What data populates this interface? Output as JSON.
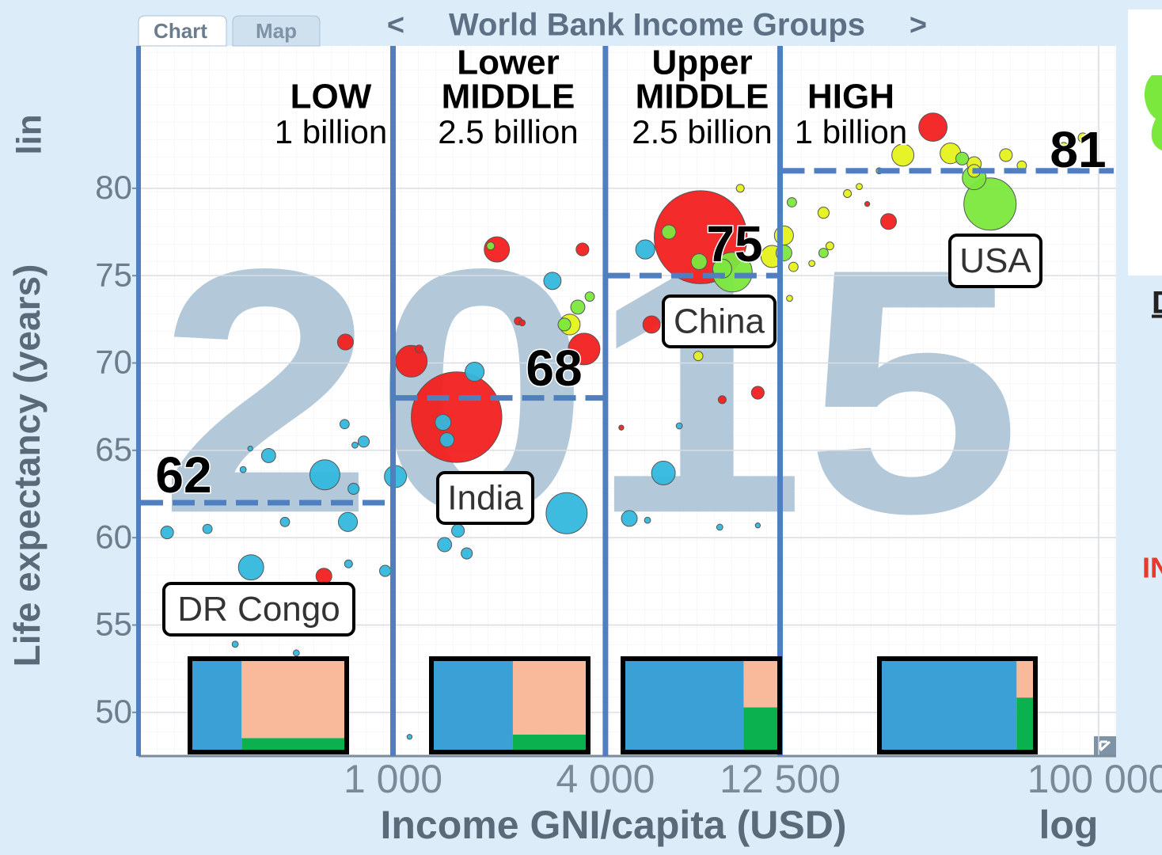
{
  "chart_data": {
    "type": "scatter",
    "year": "2015",
    "tabs": [
      "Chart",
      "Map"
    ],
    "nav_prev": "<",
    "title": "World Bank Income Groups",
    "nav_next": ">",
    "y_label": "Life expectancy (years)",
    "y_scale_label": "lin",
    "x_label": "Income GNI/capita (USD)",
    "x_scale_label": "log",
    "log_x": true,
    "grid": true,
    "xlim": [
      190,
      112000
    ],
    "ylim": [
      47.5,
      88.15
    ],
    "xticks": [
      {
        "value": 1000,
        "label": "1 000"
      },
      {
        "value": 4000,
        "label": "4 000"
      },
      {
        "value": 12500,
        "label": "12 500"
      },
      {
        "value": 100000,
        "label": "100 000"
      }
    ],
    "yticks": [
      50,
      55,
      60,
      65,
      70,
      75,
      80
    ],
    "boundary_color": "#4f7fbf",
    "mix_colors": {
      "blue": "#3aa0d6",
      "pink": "#f9b99b",
      "green": "#0bb04f"
    },
    "groups": [
      {
        "label_lines": [
          "LOW"
        ],
        "population": "1 billion",
        "average": 62,
        "mix": {
          "blue": 33,
          "pink": 57,
          "green": 10
        }
      },
      {
        "label_lines": [
          "Lower",
          "MIDDLE"
        ],
        "population": "2.5 billion",
        "average": 68,
        "mix": {
          "blue": 52,
          "pink": 39,
          "green": 9
        }
      },
      {
        "label_lines": [
          "Upper",
          "MIDDLE"
        ],
        "population": "2.5 billion",
        "average": 75,
        "mix": {
          "blue": 77,
          "pink": 12,
          "green": 11
        }
      },
      {
        "label_lines": [
          "HIGH"
        ],
        "population": "1 billion",
        "average": 81,
        "mix": {
          "blue": 88,
          "pink": 5,
          "green": 7
        }
      }
    ],
    "annotations": [
      {
        "text": "DR Congo"
      },
      {
        "text": "India"
      },
      {
        "text": "China"
      },
      {
        "text": "USA"
      }
    ],
    "side_fragments": [
      "D",
      "IN"
    ],
    "series": [
      {
        "color": "#33b8dd",
        "x": [
          229,
          298,
          396,
          444,
          494,
          641,
          729,
          773,
          745,
          826,
          1016,
          950,
          376,
          394,
          748,
          1703,
          1386,
          1422,
          1528,
          1400,
          1618,
          3105,
          2830,
          4674,
          5263,
          5839,
          5186,
          6475,
          8433,
          10810,
          1114,
          357,
          532,
          780
        ],
        "values": [
          60.3,
          60.5,
          58.3,
          64.7,
          60.9,
          63.6,
          66.5,
          62.8,
          60.9,
          65.5,
          63.5,
          58.1,
          63.9,
          65.1,
          58.5,
          69.5,
          66.6,
          65.6,
          60.4,
          59.6,
          59.1,
          61.4,
          74.7,
          61.1,
          61.0,
          63.7,
          76.5,
          66.4,
          60.6,
          60.7,
          48.6,
          53.9,
          53.4,
          65.3
        ],
        "sizes": [
          26,
          14,
          102,
          32,
          14,
          144,
          14,
          20,
          58,
          20,
          78,
          20,
          6,
          4,
          10,
          58,
          40,
          32,
          26,
          32,
          20,
          270,
          48,
          40,
          6,
          90,
          58,
          6,
          6,
          4,
          4,
          6,
          6,
          6
        ]
      },
      {
        "color": "#f2201f",
        "x": [
          733,
          1969,
          3443,
          1127,
          1514,
          7447,
          2265,
          3480,
          5404,
          10810,
          8570,
          33900,
          25370,
          22080,
          637,
          2323,
          4436,
          1186
        ],
        "values": [
          71.2,
          76.5,
          76.5,
          70.1,
          66.9,
          77.2,
          72.4,
          70.8,
          72.2,
          68.3,
          67.9,
          83.5,
          78.1,
          79.1,
          57.8,
          72.3,
          66.3,
          70.8
        ],
        "sizes": [
          40,
          102,
          26,
          160,
          1310,
          1380,
          10,
          160,
          48,
          26,
          10,
          128,
          40,
          4,
          40,
          6,
          4,
          10
        ]
      },
      {
        "color": "#e5f21a",
        "x": [
          12820,
          13640,
          16600,
          19400,
          20960,
          27860,
          38000,
          44360,
          54580,
          60530,
          90150,
          79620,
          44360,
          9640,
          7330,
          3170,
          17300,
          15380,
          13300,
          11860
        ],
        "values": [
          77.3,
          75.5,
          78.6,
          79.7,
          80.1,
          81.9,
          82.0,
          81.4,
          81.9,
          81.3,
          82.9,
          82.4,
          81.0,
          80.0,
          70.4,
          72.2,
          76.7,
          75.7,
          73.7,
          76.1
        ],
        "sizes": [
          58,
          14,
          20,
          10,
          6,
          78,
          68,
          32,
          26,
          14,
          14,
          10,
          26,
          10,
          14,
          68,
          10,
          6,
          6,
          78
        ]
      },
      {
        "color": "#7be83d",
        "x": [
          6050,
          7370,
          8570,
          9160,
          49200,
          44360,
          41020,
          12820,
          1890,
          3340,
          3060,
          3610,
          16600,
          13500,
          23870
        ],
        "values": [
          77.5,
          75.8,
          75.4,
          75.2,
          79.1,
          80.6,
          81.7,
          76.3,
          76.7,
          73.2,
          72.2,
          73.8,
          76.3,
          79.2,
          81.0
        ],
        "sizes": [
          32,
          40,
          58,
          250,
          436,
          90,
          26,
          40,
          10,
          32,
          26,
          14,
          14,
          14,
          6
        ]
      }
    ]
  }
}
